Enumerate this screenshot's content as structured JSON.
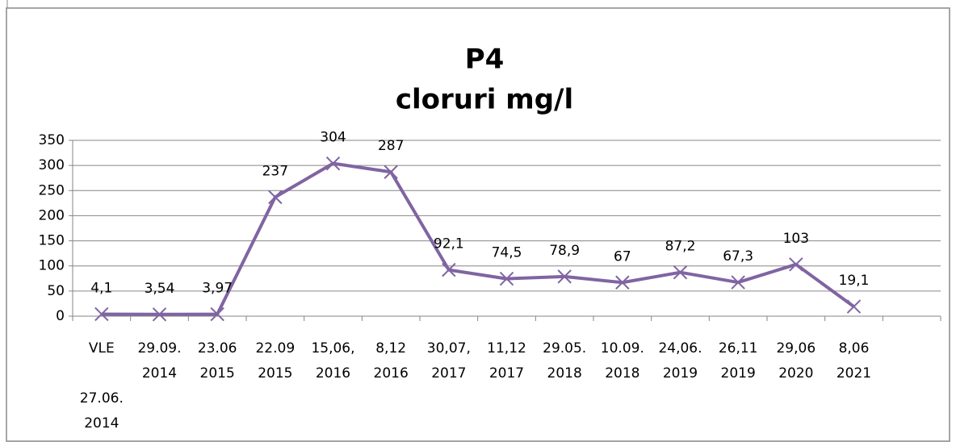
{
  "chart_data": {
    "type": "line",
    "title": "P4",
    "subtitle": "cloruri mg/l",
    "categories": [
      "VLE 27.06. 2014",
      "29.09. 2014",
      "23.06 2015",
      "22.09 2015",
      "15,06, 2016",
      "8,12 2016",
      "30,07, 2017",
      "11,12 2017",
      "29.05. 2018",
      "10.09. 2018",
      "24,06. 2019",
      "26,11 2019",
      "29,06 2020",
      "8,06 2021",
      null
    ],
    "series": [
      {
        "name": "cloruri mg/l",
        "color": "#8064a2",
        "values": [
          4.1,
          3.54,
          3.97,
          237,
          304,
          287,
          92.1,
          74.5,
          78.9,
          67,
          87.2,
          67.3,
          103,
          19.1,
          null
        ],
        "value_labels": [
          "4,1",
          "3,54",
          "3,97",
          "237",
          "304",
          "287",
          "92,1",
          "74,5",
          "78,9",
          "67",
          "87,2",
          "67,3",
          "103",
          "19,1",
          null
        ]
      }
    ],
    "ylim": [
      0,
      350
    ],
    "yticks": [
      0,
      50,
      100,
      150,
      200,
      250,
      300,
      350
    ],
    "grid": true,
    "legend": false
  }
}
